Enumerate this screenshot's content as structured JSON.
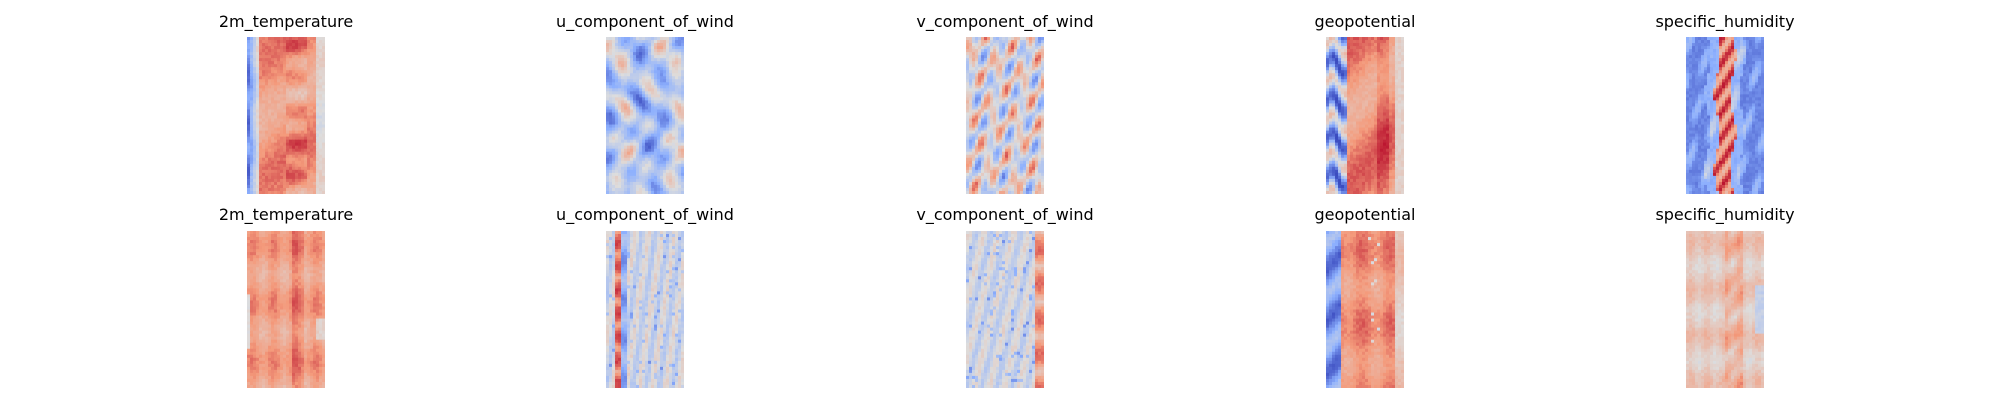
{
  "chart_data": {
    "type": "heatmap",
    "colormap": "coolwarm",
    "colormap_stops": [
      "#3b4cc0",
      "#8db0fe",
      "#dddddd",
      "#f49a7b",
      "#b40426"
    ],
    "grid": false,
    "axes_visible": false,
    "rows": [
      {
        "panels": [
          {
            "title": "2m_temperature",
            "pattern": "warm-band-cold-left-edge"
          },
          {
            "title": "u_component_of_wind",
            "pattern": "wavy-mixed-mostly-blue"
          },
          {
            "title": "v_component_of_wind",
            "pattern": "eddies-neutral"
          },
          {
            "title": "geopotential",
            "pattern": "warm-band-blue-eddies-left"
          },
          {
            "title": "specific_humidity",
            "pattern": "blue-with-red-center-band"
          }
        ]
      },
      {
        "panels": [
          {
            "title": "2m_temperature",
            "pattern": "uniform-warm-blocky"
          },
          {
            "title": "u_component_of_wind",
            "pattern": "neutral-speckled-red-left-strip"
          },
          {
            "title": "v_component_of_wind",
            "pattern": "neutral-speckled-red-right-edge"
          },
          {
            "title": "geopotential",
            "pattern": "warm-blue-left-strip"
          },
          {
            "title": "specific_humidity",
            "pattern": "pale-warm-speckled"
          }
        ]
      }
    ]
  }
}
